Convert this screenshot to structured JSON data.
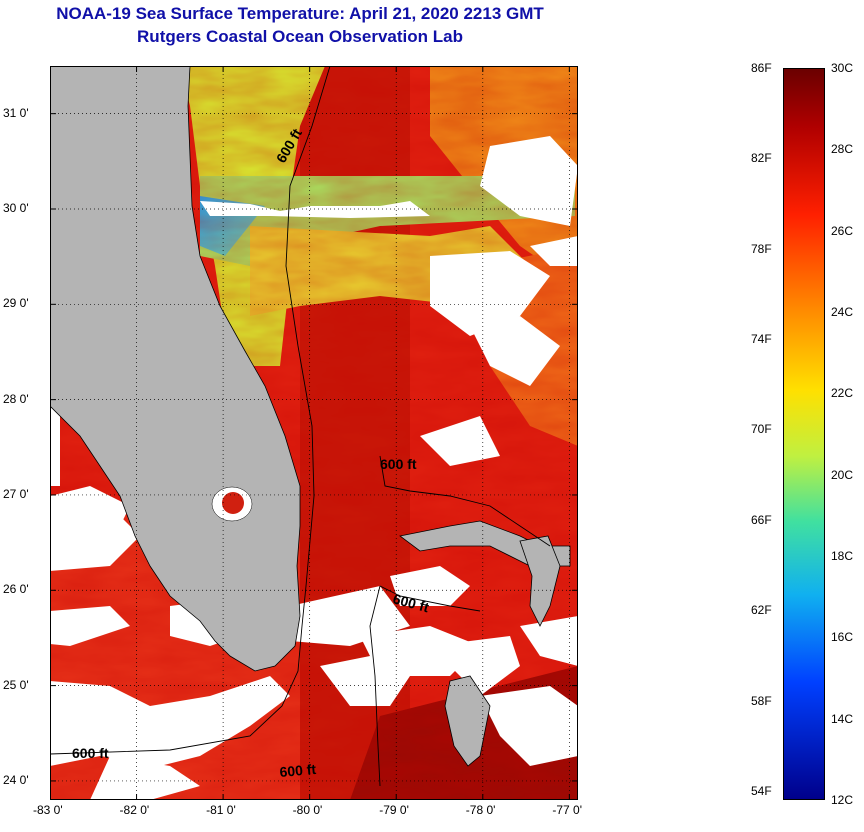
{
  "header": {
    "title": "NOAA-19 Sea Surface Temperature:  April 21, 2020 2213 GMT",
    "subtitle": "Rutgers Coastal Ocean Observation Lab"
  },
  "map": {
    "lon_range": [
      -83,
      -76.9
    ],
    "lat_range": [
      23.8,
      31.5
    ],
    "contour_labels": [
      "600 ft",
      "600 ft",
      "600 ft",
      "600 ft",
      "600 ft"
    ],
    "x_ticks": [
      {
        "v": -83,
        "label": "-83 0'"
      },
      {
        "v": -82,
        "label": "-82 0'"
      },
      {
        "v": -81,
        "label": "-81 0'"
      },
      {
        "v": -80,
        "label": "-80 0'"
      },
      {
        "v": -79,
        "label": "-79 0'"
      },
      {
        "v": -78,
        "label": "-78 0'"
      },
      {
        "v": -77,
        "label": "-77 0'"
      }
    ],
    "y_ticks": [
      {
        "v": 31,
        "label": "31 0'"
      },
      {
        "v": 30,
        "label": "30 0'"
      },
      {
        "v": 29,
        "label": "29 0'"
      },
      {
        "v": 28,
        "label": "28 0'"
      },
      {
        "v": 27,
        "label": "27 0'"
      },
      {
        "v": 26,
        "label": "26 0'"
      },
      {
        "v": 25,
        "label": "25 0'"
      },
      {
        "v": 24,
        "label": "24 0'"
      }
    ],
    "colors": {
      "land": "#b4b4b4",
      "cloud": "#ffffff",
      "warm": "#e02010",
      "hot": "#8b0000",
      "cool": "#d8e830"
    }
  },
  "colorbar": {
    "range_c": [
      12,
      30
    ],
    "celsius_labels": [
      "30C",
      "28C",
      "26C",
      "24C",
      "22C",
      "20C",
      "18C",
      "16C",
      "14C",
      "12C"
    ],
    "fahrenheit_labels": [
      "86F",
      "82F",
      "78F",
      "74F",
      "70F",
      "66F",
      "62F",
      "58F",
      "54F"
    ]
  }
}
